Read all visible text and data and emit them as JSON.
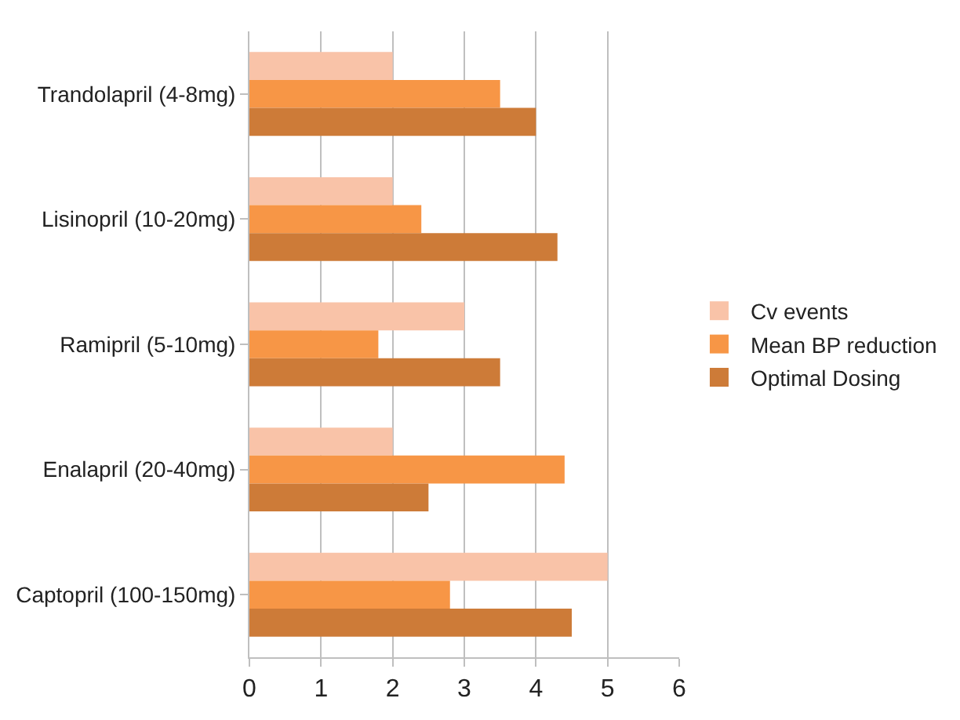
{
  "chart_data": {
    "type": "bar",
    "orientation": "horizontal",
    "categories": [
      "Trandolapril (4-8mg)",
      "Lisinopril (10-20mg)",
      "Ramipril (5-10mg)",
      "Enalapril (20-40mg)",
      "Captopril (100-150mg)"
    ],
    "series": [
      {
        "name": "Cv events",
        "color": "#f9c3a8",
        "values": [
          2,
          2,
          3,
          2,
          5
        ]
      },
      {
        "name": "Mean BP reduction",
        "color": "#f79646",
        "values": [
          3.5,
          2.4,
          1.8,
          4.4,
          2.8
        ]
      },
      {
        "name": "Optimal Dosing",
        "color": "#cd7b38",
        "values": [
          4,
          4.3,
          3.5,
          2.5,
          4.5
        ]
      }
    ],
    "xlim": [
      0,
      6
    ],
    "xticks": [
      0,
      1,
      2,
      3,
      4,
      5,
      6
    ],
    "grid": "x",
    "legend": "right"
  }
}
